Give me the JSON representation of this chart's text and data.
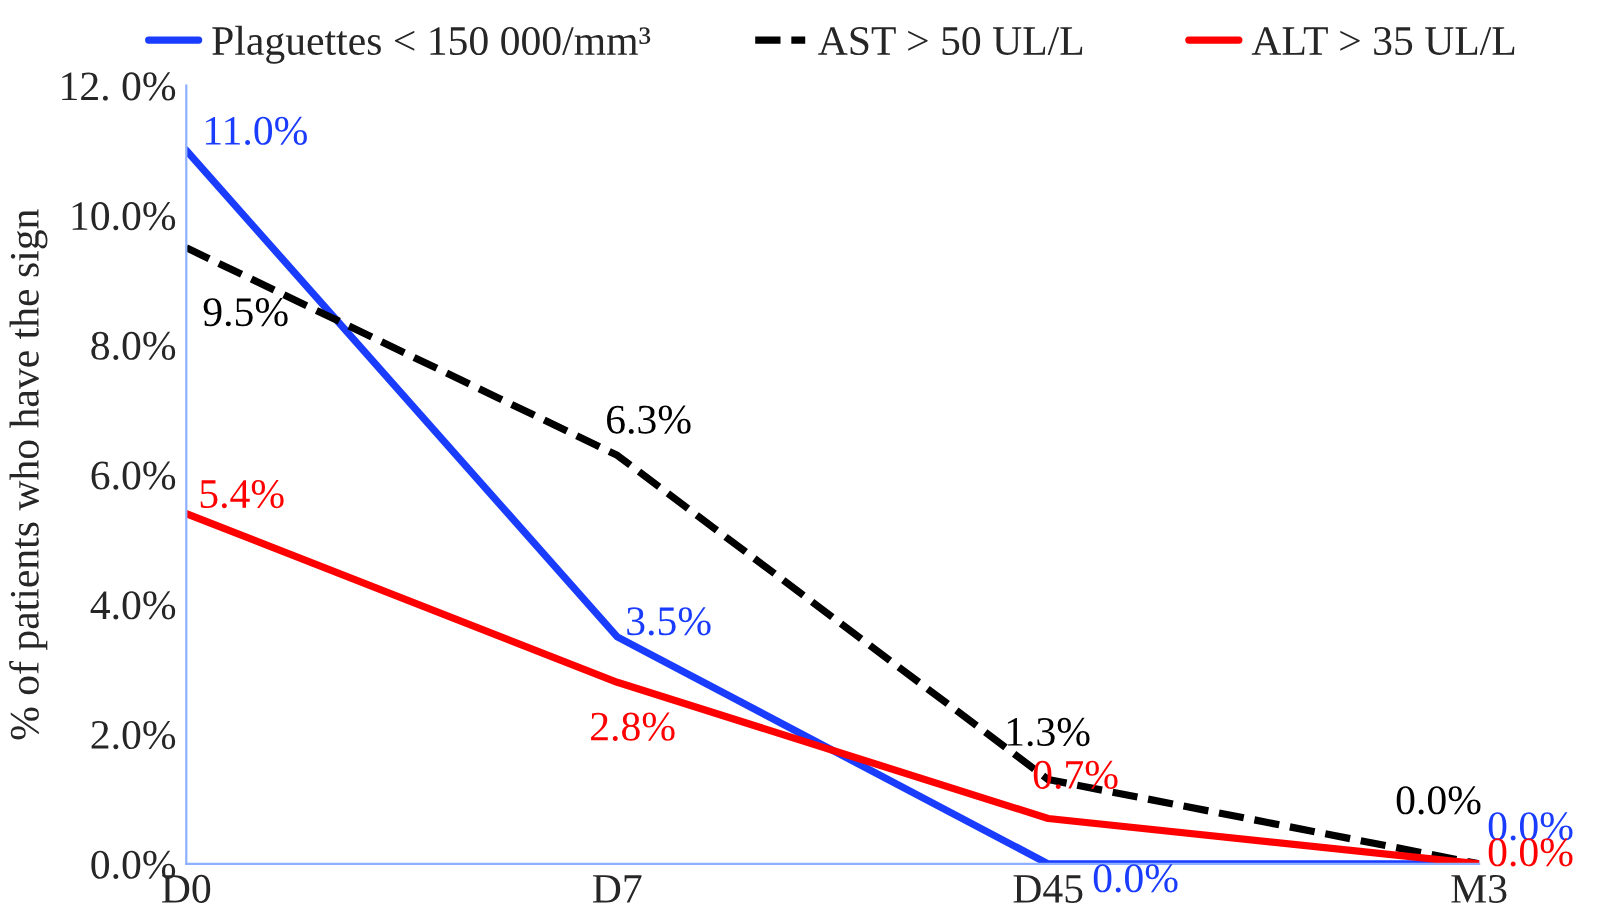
{
  "chart_data": {
    "type": "line",
    "ylabel": "% of patients who have the sign",
    "categories": [
      "D0",
      "D7",
      "D45",
      "M3"
    ],
    "ylim": [
      0,
      12
    ],
    "yticks": [
      {
        "value": 0,
        "label": "0.0%"
      },
      {
        "value": 2,
        "label": "2.0%"
      },
      {
        "value": 4,
        "label": "4.0%"
      },
      {
        "value": 6,
        "label": "6.0%"
      },
      {
        "value": 8,
        "label": "8.0%"
      },
      {
        "value": 10,
        "label": "10.0%"
      },
      {
        "value": 12,
        "label": "12. 0%"
      }
    ],
    "grid": false,
    "legend": "top",
    "marker": "none",
    "series": [
      {
        "name": "Plaguettes < 150 000/mm³",
        "color": "#1a3cff",
        "line_style": "solid",
        "values": [
          11.0,
          3.5,
          0.0,
          0.0
        ],
        "value_labels": [
          "11.0%",
          "3.5%",
          "0.0%",
          "0.0%"
        ]
      },
      {
        "name": "AST > 50 UL/L",
        "color": "#000000",
        "line_style": "dashed",
        "values": [
          9.5,
          6.3,
          1.3,
          0.0
        ],
        "value_labels": [
          "9.5%",
          "6.3%",
          "1.3%",
          "0.0%"
        ]
      },
      {
        "name": "ALT > 35 UL/L",
        "color": "#ff0000",
        "line_style": "solid",
        "values": [
          5.4,
          2.8,
          0.7,
          0.0
        ],
        "value_labels": [
          "5.4%",
          "2.8%",
          "0.7%",
          "0.0%"
        ]
      }
    ]
  }
}
